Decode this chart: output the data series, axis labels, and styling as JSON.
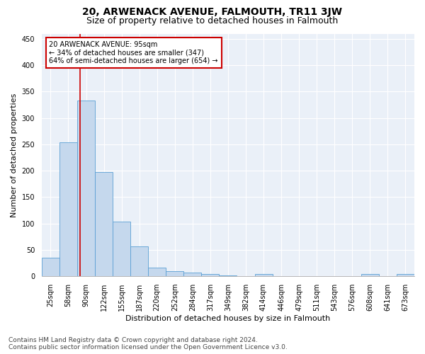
{
  "title": "20, ARWENACK AVENUE, FALMOUTH, TR11 3JW",
  "subtitle": "Size of property relative to detached houses in Falmouth",
  "xlabel": "Distribution of detached houses by size in Falmouth",
  "ylabel": "Number of detached properties",
  "bar_values": [
    35,
    254,
    333,
    197,
    104,
    57,
    17,
    10,
    7,
    4,
    1,
    0,
    4,
    0,
    0,
    0,
    0,
    0,
    4,
    0,
    4
  ],
  "categories": [
    "25sqm",
    "58sqm",
    "90sqm",
    "122sqm",
    "155sqm",
    "187sqm",
    "220sqm",
    "252sqm",
    "284sqm",
    "317sqm",
    "349sqm",
    "382sqm",
    "414sqm",
    "446sqm",
    "479sqm",
    "511sqm",
    "543sqm",
    "576sqm",
    "608sqm",
    "641sqm",
    "673sqm"
  ],
  "bar_color": "#c5d8ed",
  "bar_edge_color": "#5a9fd4",
  "marker_label": "20 ARWENACK AVENUE: 95sqm",
  "annotation_line1": "← 34% of detached houses are smaller (347)",
  "annotation_line2": "64% of semi-detached houses are larger (654) →",
  "annotation_box_color": "#ffffff",
  "annotation_box_edge": "#cc0000",
  "marker_line_color": "#cc0000",
  "ylim": [
    0,
    460
  ],
  "yticks": [
    0,
    50,
    100,
    150,
    200,
    250,
    300,
    350,
    400,
    450
  ],
  "footer_line1": "Contains HM Land Registry data © Crown copyright and database right 2024.",
  "footer_line2": "Contains public sector information licensed under the Open Government Licence v3.0.",
  "plot_bg_color": "#eaf0f8",
  "title_fontsize": 10,
  "subtitle_fontsize": 9,
  "tick_fontsize": 7,
  "label_fontsize": 8,
  "footer_fontsize": 6.5
}
